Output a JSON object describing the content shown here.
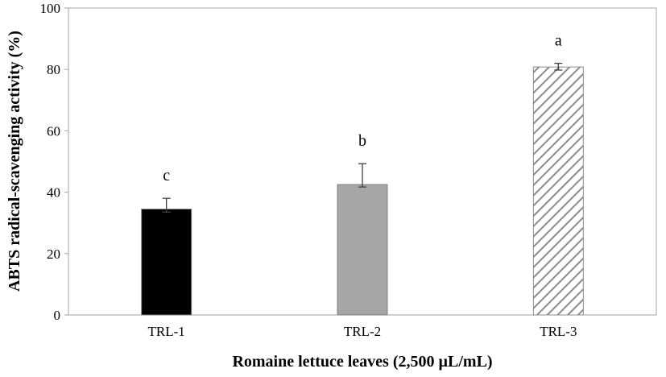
{
  "chart_data": {
    "type": "bar",
    "xlabel": "Romaine lettuce leaves (2,500 µL/mL)",
    "ylabel": "ABTS radical-scavenging activity (%)",
    "categories": [
      "TRL-1",
      "TRL-2",
      "TRL-3"
    ],
    "values": [
      34.5,
      42.5,
      80.8
    ],
    "error_low": [
      1,
      0.8,
      1
    ],
    "error_high": [
      3.5,
      6.8,
      1.2
    ],
    "annotations": [
      "c",
      "b",
      "a"
    ],
    "colors": [
      "#000000",
      "#a6a6a6",
      "#8c8c8c"
    ],
    "hatch": [
      false,
      false,
      true
    ],
    "ylim": [
      0,
      100
    ],
    "yticks": [
      0,
      20,
      40,
      60,
      80,
      100
    ]
  }
}
